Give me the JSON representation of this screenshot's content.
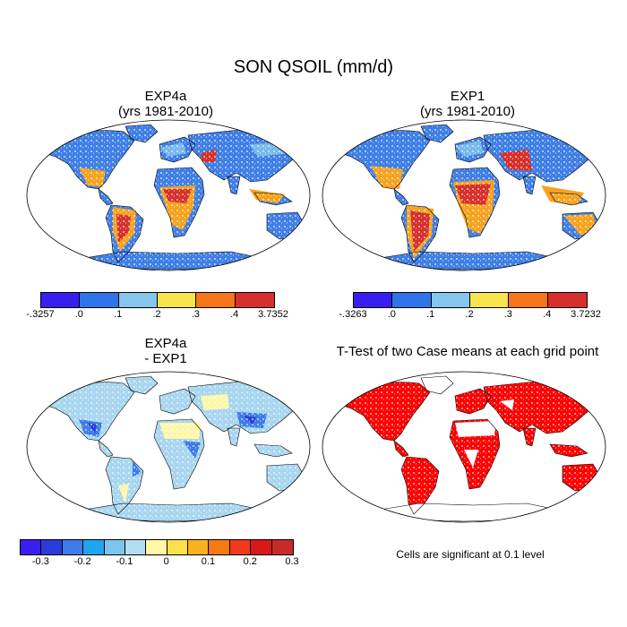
{
  "title": "SON QSOIL (mm/d)",
  "panels": {
    "exp4a": {
      "title_line1": "EXP4a",
      "title_line2": "(yrs 1981-2010)"
    },
    "exp1": {
      "title_line1": "EXP1",
      "title_line2": "(yrs 1981-2010)"
    },
    "diff": {
      "title_line1": "EXP4a",
      "title_line2": "- EXP1"
    },
    "ttest": {
      "title": "T-Test of two Case means at each grid point"
    }
  },
  "colorbars": {
    "exp4a": {
      "colors": [
        "#3a1ef0",
        "#2f74e8",
        "#86c6ec",
        "#f7e34c",
        "#f67518",
        "#d52f2e"
      ],
      "labels": [
        "-.3257",
        ".0",
        ".1",
        ".2",
        ".3",
        ".4",
        "3.7352"
      ]
    },
    "exp1": {
      "colors": [
        "#3a1ef0",
        "#2f74e8",
        "#86c6ec",
        "#f7e34c",
        "#f67518",
        "#d52f2e"
      ],
      "labels": [
        "-.3263",
        ".0",
        ".1",
        ".2",
        ".3",
        ".4",
        "3.7232"
      ]
    },
    "diff": {
      "colors": [
        "#3a1ef0",
        "#2c3bd8",
        "#3d7ce8",
        "#1ea5f0",
        "#7cc6ec",
        "#b4dcf0",
        "#fff7a8",
        "#fbe04a",
        "#f8b21e",
        "#f67a14",
        "#f23a1a",
        "#d8181a",
        "#c82a2a"
      ],
      "labels": [
        "-0.3",
        "-0.2",
        "-0.1",
        "0",
        "0.1",
        "0.2",
        "0.3"
      ]
    }
  },
  "note": "Cells are significant at 0.1 level"
}
